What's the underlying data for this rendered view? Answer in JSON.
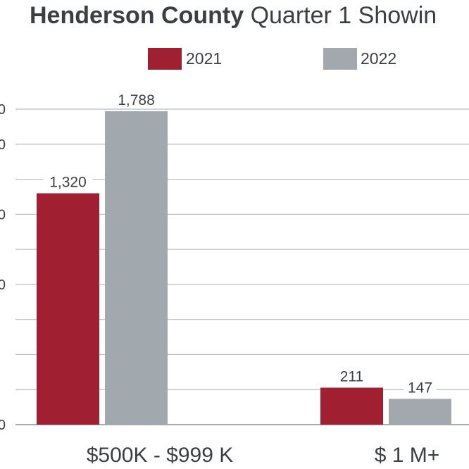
{
  "chart_data": {
    "type": "bar",
    "title_bold": "Henderson County",
    "title_rest": " Quarter 1 Showin",
    "categories": [
      "$500K - $999 K",
      "$ 1 M+"
    ],
    "series": [
      {
        "name": "2021",
        "color": "#a01f30",
        "values": [
          1320,
          211
        ]
      },
      {
        "name": "2022",
        "color": "#a1a9ae",
        "values": [
          1788,
          147
        ]
      }
    ],
    "ylim": [
      0,
      1800
    ],
    "yticks": [
      0,
      200,
      400,
      600,
      800,
      1000,
      1200,
      1400,
      1600,
      1800
    ],
    "ytick_labels": [
      "0",
      "",
      "",
      "",
      "0",
      "",
      "0",
      "",
      "0",
      "0"
    ],
    "grid": true,
    "legend": "top-center"
  }
}
